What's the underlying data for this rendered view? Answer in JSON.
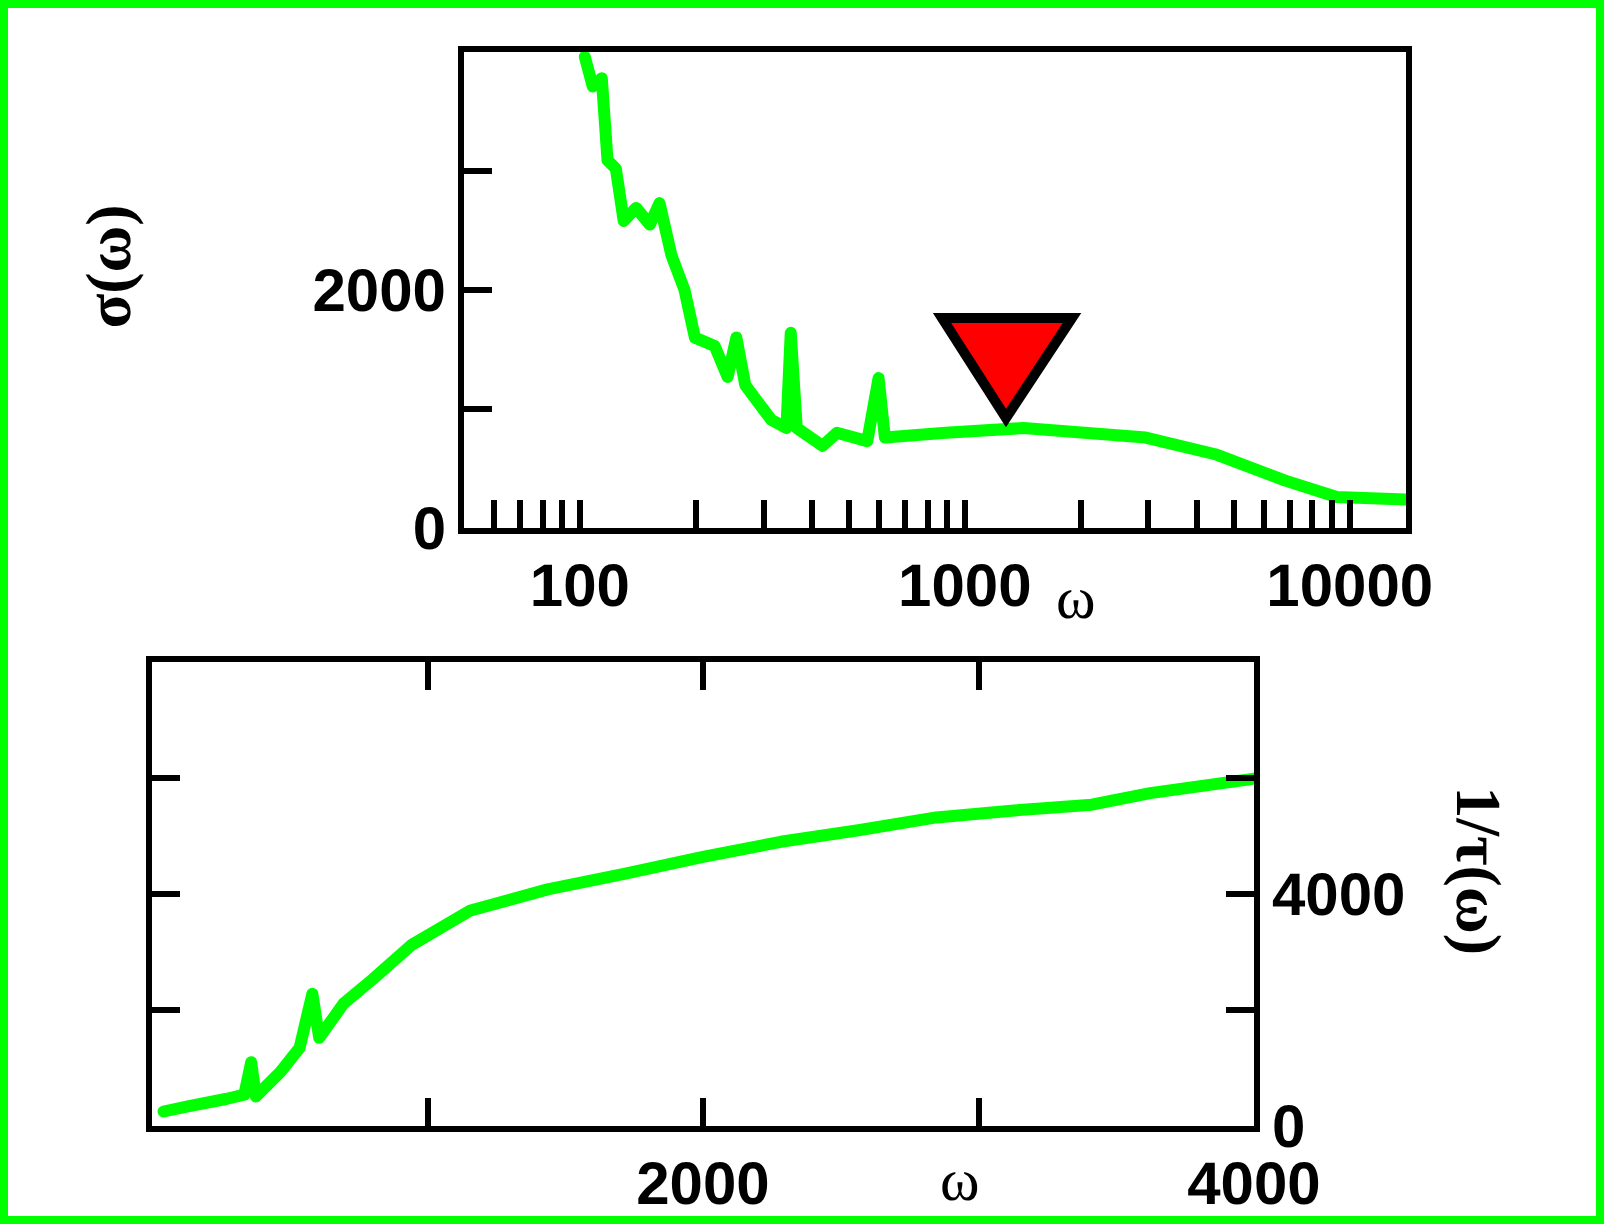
{
  "chart_data": [
    {
      "type": "line",
      "xlabel": "ω",
      "ylabel": "σ(ω)",
      "log": "x",
      "xlim": [
        50,
        14000
      ],
      "ylim": [
        0,
        4000
      ],
      "xticks": [
        {
          "value": 50,
          "label": null
        },
        {
          "value": 60,
          "label": null
        },
        {
          "value": 70,
          "label": null
        },
        {
          "value": 80,
          "label": null
        },
        {
          "value": 90,
          "label": null
        },
        100,
        {
          "value": 200,
          "label": null
        },
        {
          "value": 300,
          "label": null
        },
        {
          "value": 400,
          "label": null
        },
        {
          "value": 500,
          "label": null
        },
        {
          "value": 600,
          "label": null
        },
        {
          "value": 700,
          "label": null
        },
        {
          "value": 800,
          "label": null
        },
        {
          "value": 900,
          "label": null
        },
        1000,
        {
          "value": 2000,
          "label": null
        },
        {
          "value": 3000,
          "label": null
        },
        {
          "value": 4000,
          "label": null
        },
        {
          "value": 5000,
          "label": null
        },
        {
          "value": 6000,
          "label": null
        },
        {
          "value": 7000,
          "label": null
        },
        {
          "value": 8000,
          "label": null
        },
        {
          "value": 9000,
          "label": null
        },
        10000
      ],
      "yticks": [
        0,
        {
          "value": 1000,
          "label": null
        },
        2000,
        {
          "value": 3000,
          "label": null
        },
        {
          "value": 4000,
          "label": null
        }
      ],
      "series": [
        {
          "color": "#00ff00",
          "x": [
            103,
            108,
            114,
            118,
            124,
            130,
            140,
            152,
            161,
            173,
            187,
            199,
            224,
            242,
            255,
            269,
            314,
            344,
            353,
            366,
            427,
            465,
            558,
            597,
            620,
            892,
            1420,
            2950,
            4470,
            6770,
            9250,
            14000
          ],
          "values": [
            3960,
            3710,
            3780,
            3090,
            3020,
            2580,
            2690,
            2550,
            2730,
            2290,
            2000,
            1600,
            1530,
            1270,
            1600,
            1200,
            910,
            840,
            1640,
            840,
            690,
            800,
            730,
            1260,
            760,
            800,
            840,
            760,
            620,
            400,
            260,
            240
          ]
        }
      ]
    },
    {
      "type": "line",
      "xlabel": "ω",
      "ylabel": "1/τ(ω)",
      "xlim": [
        0,
        4000
      ],
      "ylim": [
        0,
        8000
      ],
      "xticks": [
        {
          "value": 0,
          "label": null
        },
        {
          "value": 1000,
          "label": null
        },
        2000,
        {
          "value": 3000,
          "label": null
        },
        4000
      ],
      "yticks": [
        0,
        {
          "value": 2000,
          "label": null
        },
        4000,
        {
          "value": 6000,
          "label": null
        },
        {
          "value": 8000,
          "label": null
        }
      ],
      "series": [
        {
          "color": "#00ff00",
          "x": [
            42,
            130,
            272,
            335,
            360,
            377,
            466,
            536,
            582,
            607,
            695,
            801,
            942,
            1153,
            1436,
            1718,
            2000,
            2282,
            2564,
            2847,
            3129,
            3411,
            3623,
            4000
          ],
          "values": [
            250,
            340,
            470,
            540,
            1100,
            510,
            930,
            1350,
            2280,
            1520,
            2110,
            2530,
            3120,
            3710,
            4080,
            4350,
            4640,
            4900,
            5100,
            5320,
            5440,
            5540,
            5740,
            5990
          ]
        }
      ]
    }
  ]
}
